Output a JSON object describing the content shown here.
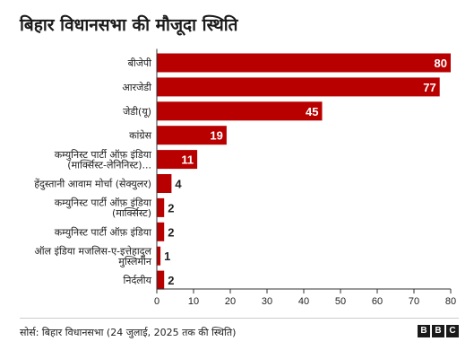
{
  "title": "बिहार विधानसभा की मौजूदा स्थिति",
  "source": "सोर्स: बिहार विधानसभा (24 जुलाई, 2025 तक की स्थिति)",
  "logo": [
    "B",
    "B",
    "C"
  ],
  "colors": {
    "bar": "#b80000",
    "axis": "#333333",
    "gridline": "#dddddd",
    "label_inside": "#ffffff",
    "label_outside": "#222222"
  },
  "chart_data": {
    "type": "bar",
    "orientation": "horizontal",
    "categories": [
      [
        "बीजेपी"
      ],
      [
        "आरजेडी"
      ],
      [
        "जेडी(यू)"
      ],
      [
        "कांग्रेस"
      ],
      [
        "कम्युनिस्ट पार्टी ऑफ़ इंडिया",
        "(मार्क्सिस्ट-लेनिनिस्ट)..."
      ],
      [
        "हेंदुस्तानी आवाम मोर्चा (सेक्युलर)"
      ],
      [
        "कम्युनिस्ट पार्टी ऑफ़ इंडिया",
        "(मार्क्सिस्ट)"
      ],
      [
        "कम्युनिस्ट पार्टी ऑफ़ इंडिया"
      ],
      [
        "ऑल इंडिया मजलिस-ए-इत्तेहादुल",
        "मुस्लिमीन"
      ],
      [
        "निर्दलीय"
      ]
    ],
    "values": [
      80,
      77,
      45,
      19,
      11,
      4,
      2,
      2,
      1,
      2
    ],
    "xlim": [
      0,
      80
    ],
    "xticks": [
      0,
      10,
      20,
      30,
      40,
      50,
      60,
      70,
      80
    ],
    "grid": false
  }
}
